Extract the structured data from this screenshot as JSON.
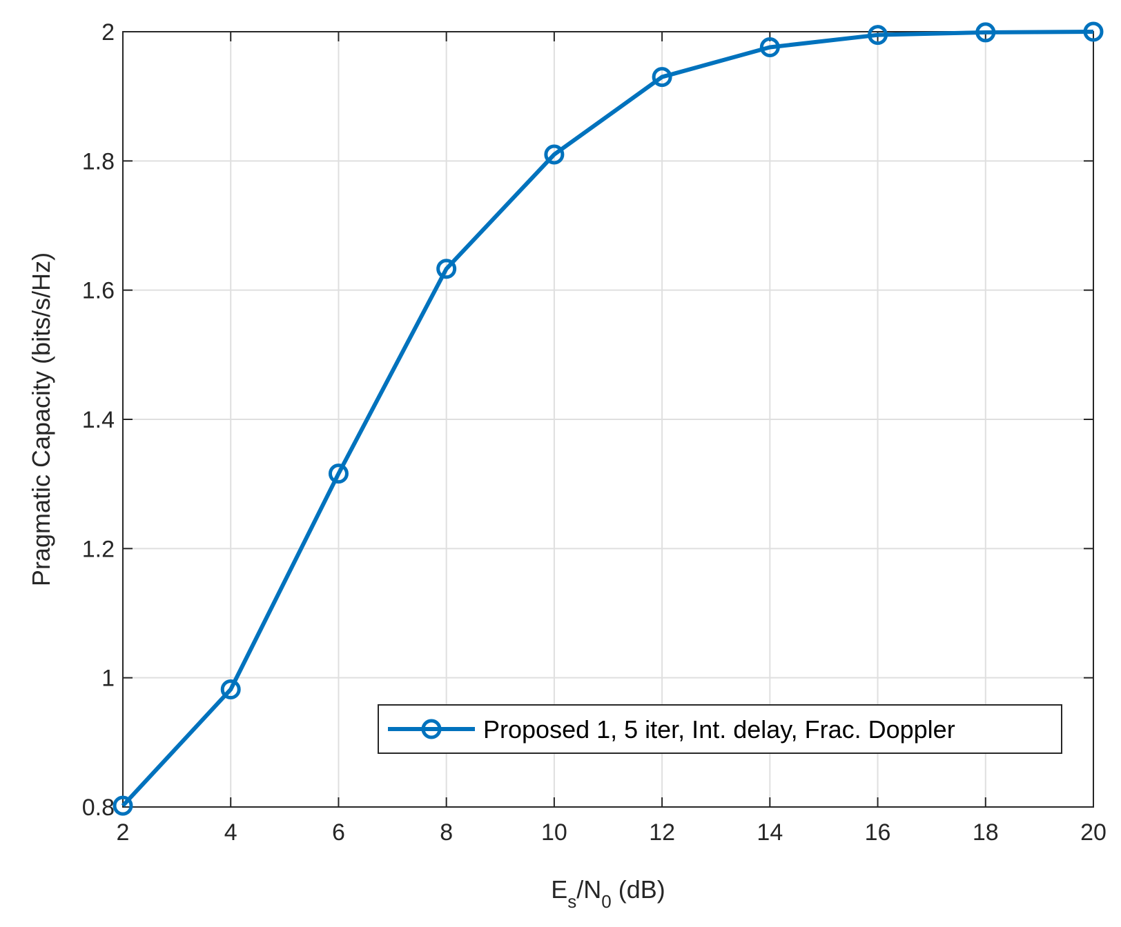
{
  "chart_data": {
    "type": "line",
    "xlabel": {
      "main": "E",
      "sub1": "s",
      "mid": "/N",
      "sub2": "0",
      "unit": " (dB)"
    },
    "ylabel": "Pragmatic Capacity (bits/s/Hz)",
    "xlim": [
      2,
      20
    ],
    "ylim": [
      0.8,
      2
    ],
    "xticks": [
      2,
      4,
      6,
      8,
      10,
      12,
      14,
      16,
      18,
      20
    ],
    "yticks": [
      0.8,
      1,
      1.2,
      1.4,
      1.6,
      1.8,
      2
    ],
    "xtick_labels": [
      "2",
      "4",
      "6",
      "8",
      "10",
      "12",
      "14",
      "16",
      "18",
      "20"
    ],
    "ytick_labels": [
      "0.8",
      "1",
      "1.2",
      "1.4",
      "1.6",
      "1.8",
      "2"
    ],
    "grid": true,
    "legend_position": "bottom-right",
    "series": [
      {
        "name": "Proposed 1, 5 iter, Int. delay, Frac. Doppler",
        "color": "#0072BD",
        "marker": "circle",
        "x": [
          2,
          4,
          6,
          8,
          10,
          12,
          14,
          16,
          18,
          20
        ],
        "y": [
          0.802,
          0.982,
          1.316,
          1.633,
          1.81,
          1.93,
          1.976,
          1.995,
          1.999,
          2.0
        ]
      }
    ]
  }
}
